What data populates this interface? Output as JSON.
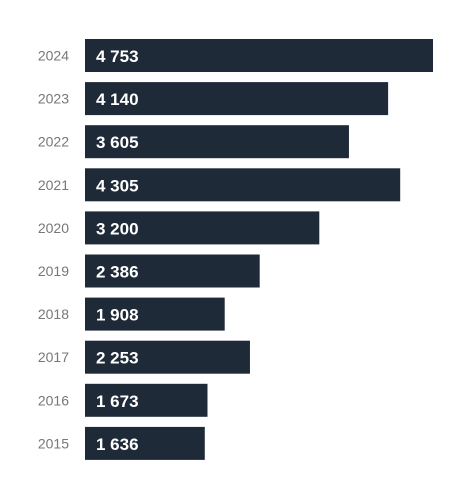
{
  "chart_data": {
    "type": "bar",
    "orientation": "horizontal",
    "categories": [
      "2024",
      "2023",
      "2022",
      "2021",
      "2020",
      "2019",
      "2018",
      "2017",
      "2016",
      "2015"
    ],
    "values": [
      4753,
      4140,
      3605,
      4305,
      3200,
      2386,
      1908,
      2253,
      1673,
      1636
    ],
    "value_labels": [
      "4 753",
      "4 140",
      "3 605",
      "4 305",
      "3 200",
      "2 386",
      "1 908",
      "2 253",
      "1 673",
      "1 636"
    ],
    "title": "",
    "xlabel": "",
    "ylabel": "",
    "xlim": [
      0,
      4753
    ],
    "grid": false,
    "legend": "none",
    "bar_color": "#1f2a38",
    "label_color": "#ffffff",
    "category_color": "#777777"
  }
}
